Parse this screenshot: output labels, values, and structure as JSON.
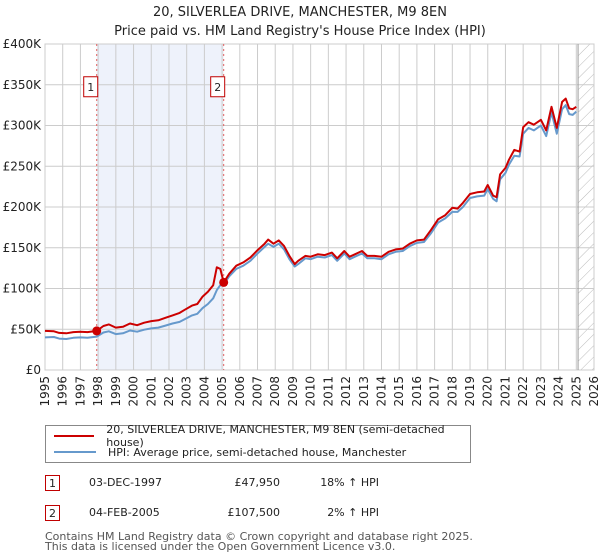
{
  "chart_data": {
    "type": "line",
    "title": "20, SILVERLEA DRIVE, MANCHESTER, M9 8EN",
    "subtitle": "Price paid vs. HM Land Registry's House Price Index (HPI)",
    "xlabel": "",
    "ylabel": "",
    "xlim": [
      1995,
      2026
    ],
    "ylim": [
      0,
      400000
    ],
    "grid": true,
    "x_ticks": [
      "1995",
      "1996",
      "1997",
      "1998",
      "1999",
      "2000",
      "2001",
      "2002",
      "2003",
      "2004",
      "2005",
      "2006",
      "2007",
      "2008",
      "2009",
      "2010",
      "2011",
      "2012",
      "2013",
      "2014",
      "2015",
      "2016",
      "2017",
      "2018",
      "2019",
      "2020",
      "2021",
      "2022",
      "2023",
      "2024",
      "2025",
      "2026"
    ],
    "y_ticks": [
      {
        "value": 0,
        "label": "£0"
      },
      {
        "value": 50000,
        "label": "£50K"
      },
      {
        "value": 100000,
        "label": "£100K"
      },
      {
        "value": 150000,
        "label": "£150K"
      },
      {
        "value": 200000,
        "label": "£200K"
      },
      {
        "value": 250000,
        "label": "£250K"
      },
      {
        "value": 300000,
        "label": "£300K"
      },
      {
        "value": 350000,
        "label": "£350K"
      },
      {
        "value": 400000,
        "label": "£400K"
      }
    ],
    "shaded_period": {
      "from": 1997.92,
      "to": 2005.09,
      "color": "#eef2fb"
    },
    "forecast_hatch_from": 2025.1,
    "series": [
      {
        "name": "20, SILVERLEA DRIVE, MANCHESTER, M9 8EN (semi-detached house)",
        "color": "#cc0000",
        "x": [
          1995.0,
          1995.5,
          1995.8,
          1996.2,
          1996.6,
          1997.0,
          1997.4,
          1997.92,
          1998.3,
          1998.6,
          1999.0,
          1999.4,
          1999.8,
          2000.2,
          2000.6,
          2001.0,
          2001.4,
          2001.8,
          2002.2,
          2002.6,
          2002.9,
          2003.3,
          2003.6,
          2003.9,
          2004.2,
          2004.5,
          2004.7,
          2004.9,
          2005.09,
          2005.4,
          2005.8,
          2006.2,
          2006.6,
          2007.0,
          2007.4,
          2007.6,
          2007.9,
          2008.2,
          2008.5,
          2008.8,
          2009.1,
          2009.3,
          2009.7,
          2010.0,
          2010.4,
          2010.8,
          2011.2,
          2011.5,
          2011.9,
          2012.2,
          2012.5,
          2012.9,
          2013.2,
          2013.6,
          2014.0,
          2014.4,
          2014.8,
          2015.2,
          2015.6,
          2016.0,
          2016.4,
          2016.8,
          2017.2,
          2017.6,
          2018.0,
          2018.3,
          2018.6,
          2019.0,
          2019.4,
          2019.8,
          2020.0,
          2020.3,
          2020.5,
          2020.7,
          2021.0,
          2021.2,
          2021.5,
          2021.8,
          2022.0,
          2022.3,
          2022.6,
          2023.0,
          2023.3,
          2023.6,
          2023.9,
          2024.2,
          2024.4,
          2024.6,
          2024.8,
          2025.0
        ],
        "values": [
          48000,
          47500,
          45500,
          45000,
          46500,
          47000,
          46500,
          47950,
          54000,
          56000,
          52000,
          53000,
          57000,
          55000,
          58000,
          60000,
          61000,
          64000,
          67000,
          70000,
          74000,
          79000,
          81000,
          90000,
          96000,
          104000,
          126000,
          124000,
          107500,
          118000,
          128000,
          132000,
          138000,
          147000,
          155000,
          160000,
          155000,
          159000,
          152000,
          140000,
          130000,
          134000,
          140000,
          139000,
          142000,
          141000,
          144000,
          137000,
          146000,
          139000,
          142000,
          146000,
          140000,
          140000,
          139000,
          145000,
          148000,
          149000,
          155000,
          159000,
          160000,
          172000,
          185000,
          190000,
          199000,
          198000,
          205000,
          216000,
          218000,
          219000,
          227000,
          214000,
          212000,
          240000,
          248000,
          258000,
          270000,
          268000,
          298000,
          304000,
          301000,
          307000,
          294000,
          323000,
          297000,
          329000,
          333000,
          321000,
          320000,
          323000
        ]
      },
      {
        "name": "HPI: Average price, semi-detached house, Manchester",
        "color": "#6699cc",
        "x": [
          1995.0,
          1995.5,
          1995.8,
          1996.2,
          1996.6,
          1997.0,
          1997.4,
          1997.92,
          1998.3,
          1998.6,
          1999.0,
          1999.4,
          1999.8,
          2000.2,
          2000.6,
          2001.0,
          2001.4,
          2001.8,
          2002.2,
          2002.6,
          2002.9,
          2003.3,
          2003.6,
          2003.9,
          2004.2,
          2004.5,
          2004.7,
          2004.9,
          2005.09,
          2005.4,
          2005.8,
          2006.2,
          2006.6,
          2007.0,
          2007.4,
          2007.6,
          2007.9,
          2008.2,
          2008.5,
          2008.8,
          2009.1,
          2009.3,
          2009.7,
          2010.0,
          2010.4,
          2010.8,
          2011.2,
          2011.5,
          2011.9,
          2012.2,
          2012.5,
          2012.9,
          2013.2,
          2013.6,
          2014.0,
          2014.4,
          2014.8,
          2015.2,
          2015.6,
          2016.0,
          2016.4,
          2016.8,
          2017.2,
          2017.6,
          2018.0,
          2018.3,
          2018.6,
          2019.0,
          2019.4,
          2019.8,
          2020.0,
          2020.3,
          2020.5,
          2020.7,
          2021.0,
          2021.2,
          2021.5,
          2021.8,
          2022.0,
          2022.3,
          2022.6,
          2023.0,
          2023.3,
          2023.6,
          2023.9,
          2024.2,
          2024.4,
          2024.6,
          2024.8,
          2025.0
        ],
        "values": [
          40000,
          40500,
          38500,
          38000,
          39500,
          40000,
          39500,
          41000,
          46000,
          47500,
          44000,
          45000,
          48500,
          47000,
          49500,
          51000,
          52000,
          54500,
          57000,
          59000,
          62500,
          67000,
          69000,
          76000,
          81000,
          88000,
          98000,
          104000,
          105000,
          115000,
          124000,
          128000,
          134000,
          143000,
          151000,
          155000,
          151000,
          155000,
          148000,
          136000,
          127000,
          130000,
          137000,
          136000,
          139000,
          138000,
          141000,
          134000,
          143000,
          136000,
          139000,
          143000,
          137000,
          137000,
          136000,
          142000,
          145000,
          146000,
          152000,
          156000,
          157000,
          168000,
          181000,
          186000,
          194000,
          194000,
          200000,
          211000,
          213000,
          214000,
          222000,
          210000,
          207000,
          234000,
          242000,
          252000,
          263000,
          262000,
          290000,
          297000,
          294000,
          300000,
          287000,
          316000,
          290000,
          320000,
          325000,
          314000,
          313000,
          317000
        ]
      }
    ],
    "annotations": [
      {
        "label": "1",
        "x": 1997.92,
        "value": 47950
      },
      {
        "label": "2",
        "x": 2005.09,
        "value": 107500
      }
    ]
  },
  "legend": {
    "items": [
      {
        "label": "20, SILVERLEA DRIVE, MANCHESTER, M9 8EN (semi-detached house)",
        "color": "#cc0000"
      },
      {
        "label": "HPI: Average price, semi-detached house, Manchester",
        "color": "#6699cc"
      }
    ]
  },
  "transactions": [
    {
      "id": "1",
      "date": "03-DEC-1997",
      "price": "£47,950",
      "hpi": "18% ↑ HPI"
    },
    {
      "id": "2",
      "date": "04-FEB-2005",
      "price": "£107,500",
      "hpi": "2% ↑ HPI"
    }
  ],
  "footer": {
    "line1": "Contains HM Land Registry data © Crown copyright and database right 2025.",
    "line2": "This data is licensed under the Open Government Licence v3.0."
  }
}
